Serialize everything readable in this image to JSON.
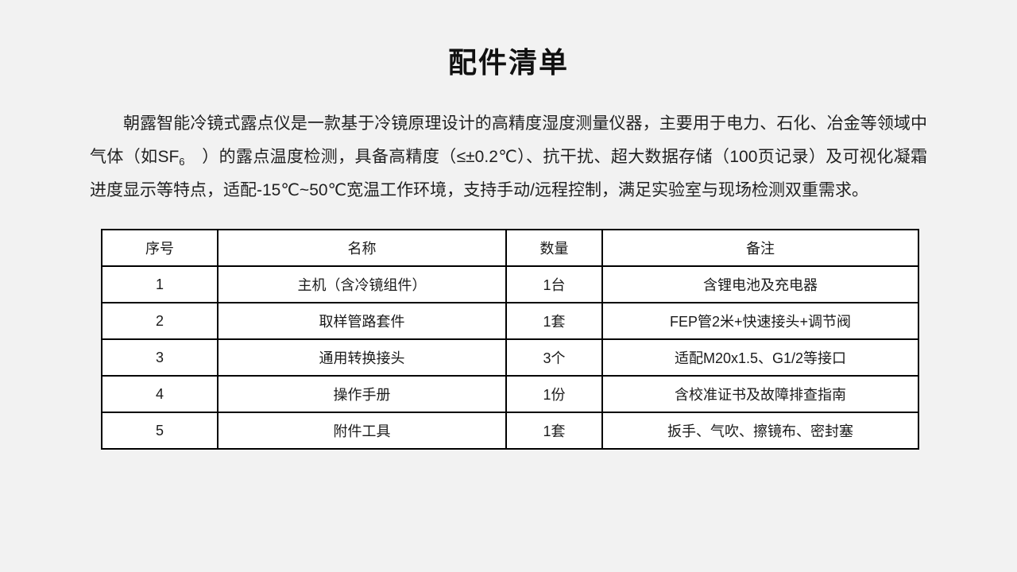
{
  "page": {
    "title": "配件清单"
  },
  "intro": {
    "part1": "朝露智能冷镜式露点仪是一款基于冷镜原理设计的高精度湿度测量仪器，主要用于电力、石化、冶金等领域中气体（如SF",
    "subscript": "6",
    "part2": "　）的露点温度检测，具备高精度（≤±0.2℃）、抗干扰、超大数据存储（100页记录）及可视化凝霜进度显示等特点，适配-15℃~50℃宽温工作环境，支持手动/远程控制，满足实验室与现场检测双重需求。"
  },
  "table": {
    "headers": [
      "序号",
      "名称",
      "数量",
      "备注"
    ],
    "rows": [
      [
        "1",
        "主机（含冷镜组件）",
        "1台",
        "含锂电池及充电器"
      ],
      [
        "2",
        "取样管路套件",
        "1套",
        "FEP管2米+快速接头+调节阀"
      ],
      [
        "3",
        "通用转换接头",
        "3个",
        "适配M20x1.5、G1/2等接口"
      ],
      [
        "4",
        "操作手册",
        "1份",
        "含校准证书及故障排查指南"
      ],
      [
        "5",
        "附件工具",
        "1套",
        "扳手、气吹、擦镜布、密封塞"
      ]
    ]
  },
  "colors": {
    "background": "#f2f2f2",
    "cell_background": "#ffffff",
    "border": "#000000",
    "text": "#1a1a1a"
  }
}
